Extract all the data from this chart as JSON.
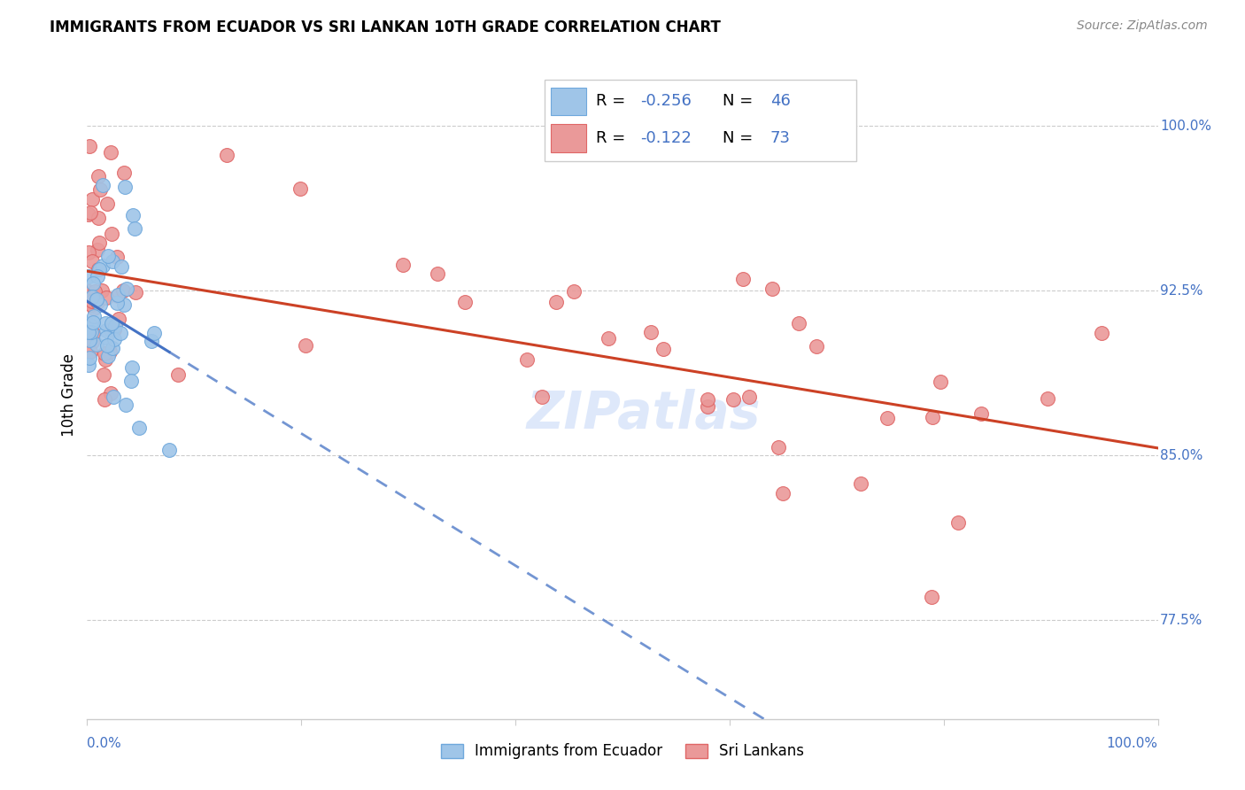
{
  "title": "IMMIGRANTS FROM ECUADOR VS SRI LANKAN 10TH GRADE CORRELATION CHART",
  "source": "Source: ZipAtlas.com",
  "ylabel": "10th Grade",
  "ytick_labels": [
    "77.5%",
    "85.0%",
    "92.5%",
    "100.0%"
  ],
  "ytick_values": [
    0.775,
    0.85,
    0.925,
    1.0
  ],
  "legend_label1": "Immigrants from Ecuador",
  "legend_label2": "Sri Lankans",
  "R1": -0.256,
  "N1": 46,
  "R2": -0.122,
  "N2": 73,
  "color1": "#9fc5e8",
  "color2": "#ea9999",
  "color1_edge": "#6fa8dc",
  "color2_edge": "#e06666",
  "line_color1": "#4472c4",
  "line_color2": "#cc4125",
  "watermark_color": "#c9daf8",
  "xlim": [
    0.0,
    1.0
  ],
  "ylim": [
    0.73,
    1.025
  ],
  "title_fontsize": 12,
  "source_fontsize": 10,
  "tick_fontsize": 11,
  "legend_fontsize": 13
}
